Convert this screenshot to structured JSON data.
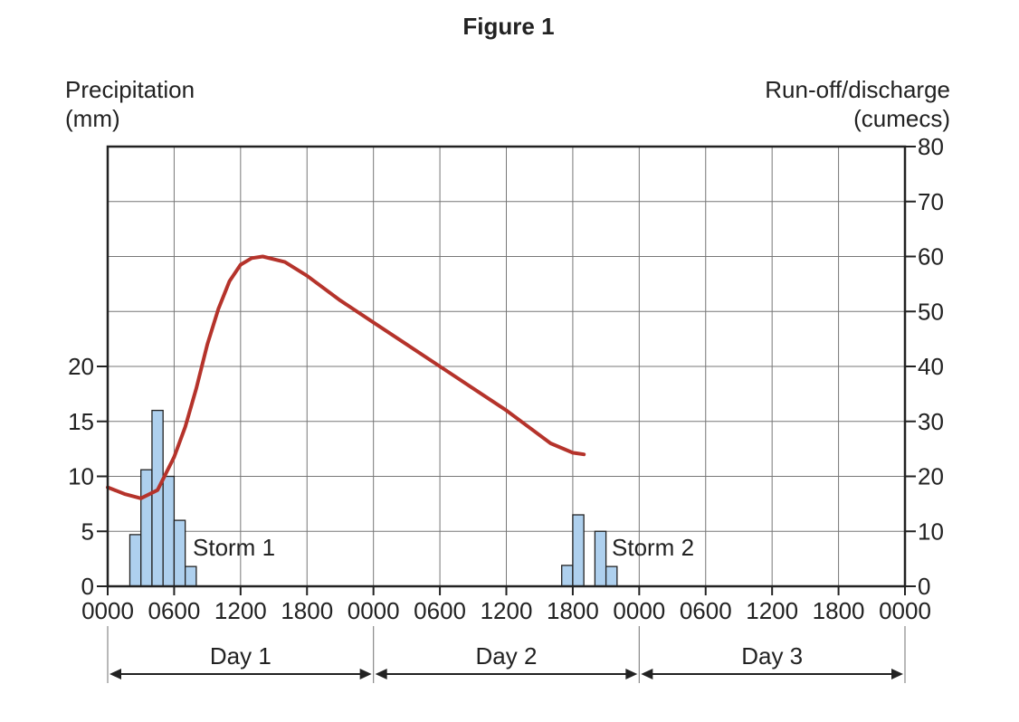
{
  "chart_data": {
    "type": "bar+line",
    "title": "Figure 1",
    "ylabel_left": [
      "Precipitation",
      "(mm)"
    ],
    "ylabel_right": [
      "Run-off/discharge",
      "(cumecs)"
    ],
    "x_tick_labels": [
      "0000",
      "0600",
      "1200",
      "1800",
      "0000",
      "0600",
      "1200",
      "1800",
      "0000",
      "0600",
      "1200",
      "1800",
      "0000"
    ],
    "x_range_hours": [
      0,
      72
    ],
    "left_ticks": [
      0,
      5,
      10,
      15,
      20
    ],
    "right_ticks": [
      0,
      10,
      20,
      30,
      40,
      50,
      60,
      70,
      80
    ],
    "right_ylim": [
      0,
      80
    ],
    "grid": true,
    "days": [
      "Day 1",
      "Day 2",
      "Day 3"
    ],
    "precipitation_bars": [
      {
        "hour": 2,
        "mm": 4.7
      },
      {
        "hour": 3,
        "mm": 10.6
      },
      {
        "hour": 4,
        "mm": 16
      },
      {
        "hour": 5,
        "mm": 10
      },
      {
        "hour": 6,
        "mm": 6
      },
      {
        "hour": 7,
        "mm": 1.8
      },
      {
        "hour": 41,
        "mm": 1.9
      },
      {
        "hour": 42,
        "mm": 6.5
      },
      {
        "hour": 44,
        "mm": 5
      },
      {
        "hour": 45,
        "mm": 1.8
      }
    ],
    "discharge_series": {
      "hours": [
        0,
        1.5,
        3,
        4.5,
        6,
        7,
        8,
        9,
        10,
        11,
        12,
        13,
        14,
        16,
        18,
        21,
        24,
        27,
        30,
        33,
        36,
        38,
        40,
        42,
        43
      ],
      "cumecs": [
        18,
        16.8,
        16,
        17.5,
        23.5,
        29,
        36,
        44,
        50.5,
        55.5,
        58.5,
        59.7,
        60,
        59,
        56.5,
        52,
        48,
        44,
        40,
        36,
        32,
        29,
        26,
        24.3,
        24
      ]
    },
    "annotations": [
      "Storm 1",
      "Storm 2"
    ],
    "colors": {
      "bars": "#aed0ee",
      "line": "#b5332b"
    }
  }
}
